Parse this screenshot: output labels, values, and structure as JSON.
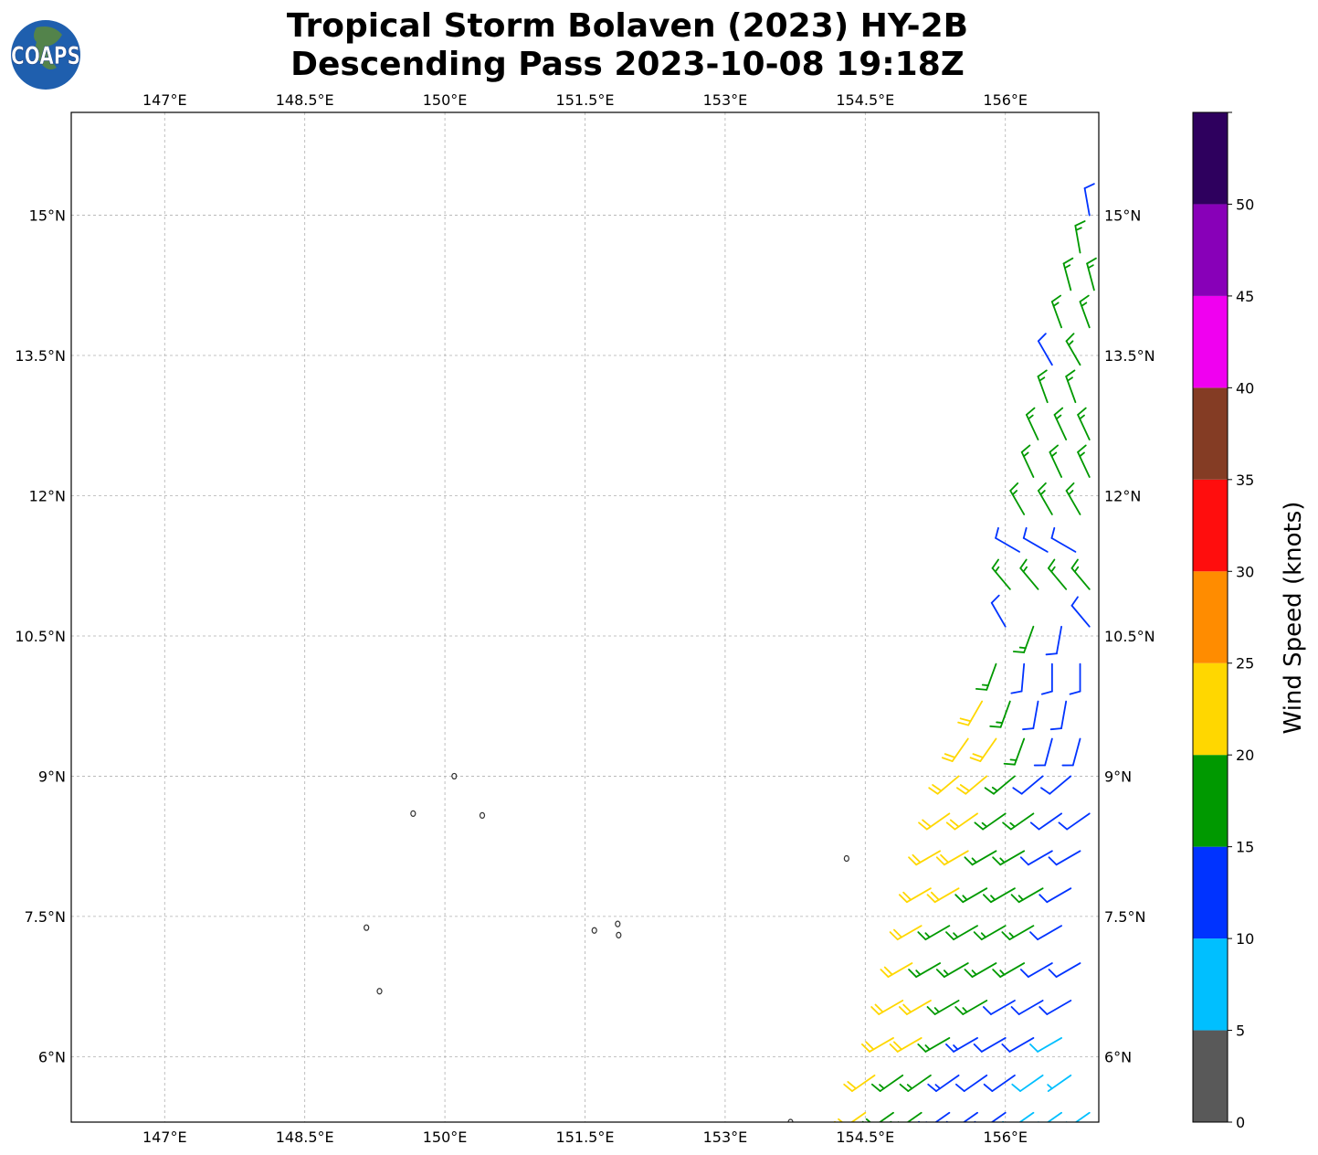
{
  "title": {
    "line1": "Tropical Storm Bolaven (2023) HY-2B",
    "line2": "Descending Pass 2023-10-08 19:18Z"
  },
  "logo": {
    "text": "COAPS"
  },
  "map": {
    "lon_range": [
      146.0,
      157.0
    ],
    "lat_range": [
      5.3,
      16.1
    ],
    "gridlines": true,
    "lon_ticks": [
      147,
      148.5,
      150,
      151.5,
      153,
      154.5,
      156
    ],
    "lon_labels": [
      "147°E",
      "148.5°E",
      "150°E",
      "151.5°E",
      "153°E",
      "154.5°E",
      "156°E"
    ],
    "lat_ticks": [
      6,
      7.5,
      9,
      10.5,
      12,
      13.5,
      15
    ],
    "lat_labels": [
      "6°N",
      "7.5°N",
      "9°N",
      "10.5°N",
      "12°N",
      "13.5°N",
      "15°N"
    ],
    "islands": [
      [
        150.1,
        9.0
      ],
      [
        149.66,
        8.6
      ],
      [
        150.4,
        8.58
      ],
      [
        151.6,
        7.35
      ],
      [
        151.85,
        7.42
      ],
      [
        151.86,
        7.3
      ],
      [
        149.16,
        7.38
      ],
      [
        149.3,
        6.7
      ],
      [
        154.3,
        8.12
      ],
      [
        153.7,
        5.3
      ]
    ]
  },
  "colorbar": {
    "label": "Wind Speed (knots)",
    "bounds": [
      0,
      5,
      10,
      15,
      20,
      25,
      30,
      35,
      40,
      45,
      50,
      55
    ],
    "colors": [
      "#595959",
      "#00bfff",
      "#0033ff",
      "#009900",
      "#ffd700",
      "#ff8c00",
      "#ff0d0d",
      "#843c24",
      "#f000f0",
      "#8800b8",
      "#2e005e"
    ],
    "tick_values": [
      0,
      5,
      10,
      15,
      20,
      25,
      30,
      35,
      40,
      45,
      50
    ],
    "tick_labels": [
      "0",
      "5",
      "10",
      "15",
      "20",
      "25",
      "30",
      "35",
      "40",
      "45",
      "50"
    ]
  },
  "chart_data": {
    "type": "wind-barbs",
    "units": "knots",
    "rows": [
      {
        "lat": 5.4,
        "lon": [
          154.5,
          154.8,
          155.1,
          155.4,
          155.7,
          156.0,
          156.3,
          156.6,
          156.9
        ],
        "spd": [
          22,
          18,
          17,
          13,
          12,
          12,
          8,
          7,
          7
        ],
        "dir": 235
      },
      {
        "lat": 5.8,
        "lon": [
          154.6,
          154.9,
          155.2,
          155.5,
          155.8,
          156.1,
          156.4,
          156.7
        ],
        "spd": [
          22,
          17,
          17,
          13,
          12,
          11,
          8,
          7
        ],
        "dir": 235
      },
      {
        "lat": 6.2,
        "lon": [
          154.8,
          155.1,
          155.4,
          155.7,
          156.0,
          156.3,
          156.6
        ],
        "spd": [
          22,
          21,
          17,
          13,
          12,
          12,
          8
        ],
        "dir": 240
      },
      {
        "lat": 6.6,
        "lon": [
          154.9,
          155.2,
          155.5,
          155.8,
          156.1,
          156.4,
          156.7
        ],
        "spd": [
          22,
          21,
          17,
          17,
          12,
          12,
          11
        ],
        "dir": 240
      },
      {
        "lat": 7.0,
        "lon": [
          155.0,
          155.3,
          155.6,
          155.9,
          156.2,
          156.5,
          156.8
        ],
        "spd": [
          22,
          17,
          17,
          17,
          17,
          12,
          12
        ],
        "dir": 240
      },
      {
        "lat": 7.4,
        "lon": [
          155.1,
          155.4,
          155.7,
          156.0,
          156.3,
          156.6
        ],
        "spd": [
          22,
          17,
          17,
          17,
          17,
          12
        ],
        "dir": 240
      },
      {
        "lat": 7.8,
        "lon": [
          155.2,
          155.5,
          155.8,
          156.1,
          156.4,
          156.7
        ],
        "spd": [
          22,
          21,
          17,
          17,
          17,
          12
        ],
        "dir": 240
      },
      {
        "lat": 8.2,
        "lon": [
          155.3,
          155.6,
          155.9,
          156.2,
          156.5,
          156.8
        ],
        "spd": [
          22,
          22,
          17,
          17,
          12,
          12
        ],
        "dir": 240
      },
      {
        "lat": 8.6,
        "lon": [
          155.4,
          155.7,
          156.0,
          156.3,
          156.6,
          156.9
        ],
        "spd": [
          22,
          22,
          17,
          17,
          12,
          12
        ],
        "dir": 235
      },
      {
        "lat": 9.0,
        "lon": [
          155.5,
          155.8,
          156.1,
          156.4,
          156.7
        ],
        "spd": [
          22,
          22,
          17,
          12,
          12
        ],
        "dir": 230
      },
      {
        "lat": 9.4,
        "lon": [
          155.6,
          155.9,
          156.2,
          156.5,
          156.8
        ],
        "spd": [
          22,
          22,
          17,
          12,
          12
        ],
        "dir": [
          215,
          215,
          200,
          195,
          195
        ]
      },
      {
        "lat": 9.8,
        "lon": [
          155.75,
          156.05,
          156.35,
          156.65
        ],
        "spd": [
          22,
          17,
          12,
          12
        ],
        "dir": [
          210,
          200,
          190,
          190
        ]
      },
      {
        "lat": 10.2,
        "lon": [
          155.9,
          156.2,
          156.5,
          156.8
        ],
        "spd": [
          17,
          12,
          12,
          12
        ],
        "dir": [
          200,
          185,
          180,
          180
        ]
      },
      {
        "lat": 10.6,
        "lon": [
          156.0,
          156.3,
          156.6,
          156.9
        ],
        "spd": [
          12,
          17,
          12,
          12
        ],
        "dir": [
          330,
          200,
          190,
          320
        ]
      },
      {
        "lat": 11.0,
        "lon": [
          156.05,
          156.35,
          156.65,
          156.9
        ],
        "spd": [
          17,
          17,
          17,
          17
        ],
        "dir": 320
      },
      {
        "lat": 11.4,
        "lon": [
          156.15,
          156.45,
          156.75
        ],
        "spd": [
          12,
          12,
          12
        ],
        "dir": 300
      },
      {
        "lat": 11.8,
        "lon": [
          156.2,
          156.5,
          156.8
        ],
        "spd": [
          17,
          17,
          17
        ],
        "dir": 330
      },
      {
        "lat": 12.2,
        "lon": [
          156.3,
          156.6,
          156.9
        ],
        "spd": [
          17,
          17,
          17
        ],
        "dir": 335
      },
      {
        "lat": 12.6,
        "lon": [
          156.35,
          156.65,
          156.9
        ],
        "spd": [
          17,
          17,
          17
        ],
        "dir": 335
      },
      {
        "lat": 13.0,
        "lon": [
          156.45,
          156.75
        ],
        "spd": [
          17,
          17
        ],
        "dir": 340
      },
      {
        "lat": 13.4,
        "lon": [
          156.5,
          156.8
        ],
        "spd": [
          12,
          17
        ],
        "dir": 330
      },
      {
        "lat": 13.8,
        "lon": [
          156.6,
          156.9
        ],
        "spd": [
          17,
          17
        ],
        "dir": 340
      },
      {
        "lat": 14.2,
        "lon": [
          156.7,
          156.95
        ],
        "spd": [
          17,
          17
        ],
        "dir": 345
      },
      {
        "lat": 14.6,
        "lon": [
          156.8
        ],
        "spd": [
          17
        ],
        "dir": 350
      },
      {
        "lat": 15.0,
        "lon": [
          156.9
        ],
        "spd": [
          12
        ],
        "dir": 350
      }
    ]
  }
}
